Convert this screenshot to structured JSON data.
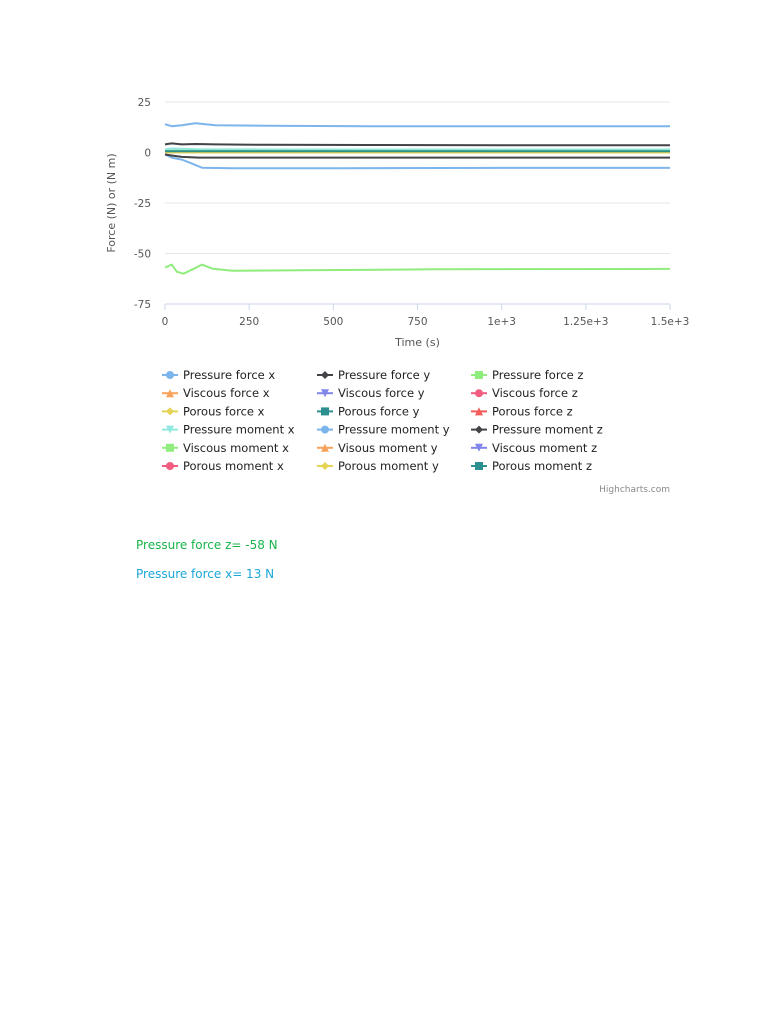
{
  "chart_data": {
    "type": "line",
    "title": "",
    "xlabel": "Time (s)",
    "ylabel": "Force (N) or (N m)",
    "xlim": [
      0,
      1500
    ],
    "ylim": [
      -75,
      25
    ],
    "x_ticks": [
      "0",
      "250",
      "500",
      "750",
      "1e+3",
      "1.25e+3",
      "1.5e+3"
    ],
    "y_ticks": [
      "25",
      "0",
      "-25",
      "-50",
      "-75"
    ],
    "grid": true,
    "legend_placement": "bottom",
    "credits": "Highcharts.com",
    "series": [
      {
        "name": "Pressure force x",
        "color": "#7cb5ec",
        "marker": "circle",
        "points": [
          [
            0,
            14
          ],
          [
            20,
            13
          ],
          [
            50,
            13.5
          ],
          [
            90,
            14.5
          ],
          [
            150,
            13.5
          ],
          [
            300,
            13.2
          ],
          [
            600,
            13
          ],
          [
            1000,
            13
          ],
          [
            1500,
            13
          ]
        ]
      },
      {
        "name": "Pressure force y",
        "color": "#434348",
        "marker": "diamond",
        "points": [
          [
            0,
            4
          ],
          [
            20,
            4.5
          ],
          [
            50,
            4
          ],
          [
            90,
            4.2
          ],
          [
            150,
            4
          ],
          [
            300,
            3.8
          ],
          [
            600,
            3.7
          ],
          [
            1000,
            3.6
          ],
          [
            1500,
            3.6
          ]
        ]
      },
      {
        "name": "Pressure force z",
        "color": "#90ed7d",
        "marker": "square",
        "points": [
          [
            0,
            -57
          ],
          [
            20,
            -55.5
          ],
          [
            35,
            -59
          ],
          [
            55,
            -60
          ],
          [
            80,
            -58
          ],
          [
            110,
            -55.5
          ],
          [
            140,
            -57.5
          ],
          [
            200,
            -58.5
          ],
          [
            400,
            -58.3
          ],
          [
            800,
            -57.8
          ],
          [
            1500,
            -57.6
          ]
        ]
      },
      {
        "name": "Viscous force x",
        "color": "#f7a35c",
        "marker": "triangle",
        "points": [
          [
            0,
            0.5
          ],
          [
            1500,
            0.5
          ]
        ]
      },
      {
        "name": "Viscous force y",
        "color": "#8085e9",
        "marker": "triangle-down",
        "points": [
          [
            0,
            0.3
          ],
          [
            1500,
            0.3
          ]
        ]
      },
      {
        "name": "Viscous force z",
        "color": "#f15c80",
        "marker": "circle",
        "points": [
          [
            0,
            0.2
          ],
          [
            1500,
            0.2
          ]
        ]
      },
      {
        "name": "Porous force x",
        "color": "#e4d354",
        "marker": "diamond",
        "points": [
          [
            0,
            0.4
          ],
          [
            1500,
            0.4
          ]
        ]
      },
      {
        "name": "Porous force y",
        "color": "#2b908f",
        "marker": "square",
        "points": [
          [
            0,
            0.8
          ],
          [
            1500,
            0.8
          ]
        ]
      },
      {
        "name": "Porous force z",
        "color": "#f45b5b",
        "marker": "triangle",
        "points": [
          [
            0,
            0.1
          ],
          [
            1500,
            0.1
          ]
        ]
      },
      {
        "name": "Pressure moment x",
        "color": "#91e8e1",
        "marker": "triangle-down",
        "points": [
          [
            0,
            1.5
          ],
          [
            20,
            2
          ],
          [
            100,
            1.6
          ],
          [
            400,
            1.5
          ],
          [
            1500,
            1.5
          ]
        ]
      },
      {
        "name": "Pressure moment y",
        "color": "#7cb5ec",
        "marker": "circle",
        "points": [
          [
            0,
            -1
          ],
          [
            20,
            -2.5
          ],
          [
            50,
            -3.5
          ],
          [
            80,
            -5.5
          ],
          [
            110,
            -7.5
          ],
          [
            200,
            -7.8
          ],
          [
            500,
            -7.8
          ],
          [
            1000,
            -7.6
          ],
          [
            1500,
            -7.6
          ]
        ]
      },
      {
        "name": "Pressure moment z",
        "color": "#434348",
        "marker": "diamond",
        "points": [
          [
            0,
            -1
          ],
          [
            20,
            -1.5
          ],
          [
            50,
            -2.2
          ],
          [
            100,
            -2.5
          ],
          [
            200,
            -2.5
          ],
          [
            600,
            -2.5
          ],
          [
            1500,
            -2.5
          ]
        ]
      },
      {
        "name": "Viscous moment x",
        "color": "#90ed7d",
        "marker": "square",
        "points": [
          [
            0,
            0.8
          ],
          [
            1500,
            0.8
          ]
        ]
      },
      {
        "name": "Visous moment y",
        "color": "#f7a35c",
        "marker": "triangle",
        "points": [
          [
            0,
            0.2
          ],
          [
            1500,
            0.2
          ]
        ]
      },
      {
        "name": "Viscous moment z",
        "color": "#8085e9",
        "marker": "triangle-down",
        "points": [
          [
            0,
            0
          ],
          [
            1500,
            0
          ]
        ]
      },
      {
        "name": "Porous moment x",
        "color": "#f15c80",
        "marker": "circle",
        "points": [
          [
            0,
            0
          ],
          [
            1500,
            0
          ]
        ]
      },
      {
        "name": "Porous moment y",
        "color": "#e4d354",
        "marker": "diamond",
        "points": [
          [
            0,
            0
          ],
          [
            1500,
            0
          ]
        ]
      },
      {
        "name": "Porous moment z",
        "color": "#2b908f",
        "marker": "square",
        "points": [
          [
            0,
            0.6
          ],
          [
            1500,
            0.6
          ]
        ]
      }
    ]
  },
  "notes": {
    "pressure_z": "Pressure force z= -58 N",
    "pressure_x": "Pressure force x= 13 N"
  }
}
